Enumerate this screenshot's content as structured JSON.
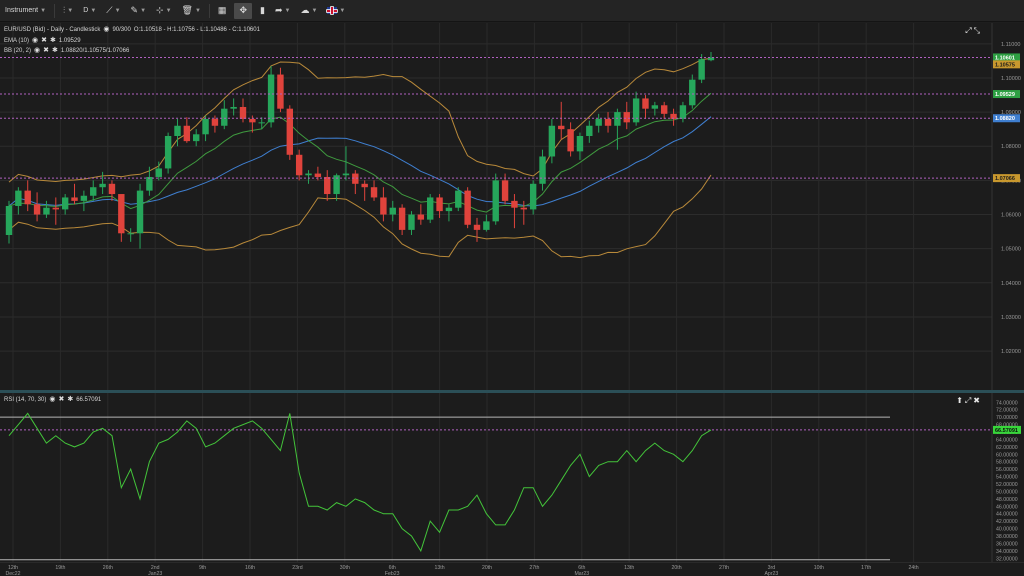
{
  "toolbar": {
    "instrument_label": "Instrument",
    "timeframe_label": "D",
    "flag_icon": "uk-flag-icon",
    "icons": [
      "chart-type-icon",
      "draw-line-icon",
      "pencil-icon",
      "shapes-icon",
      "trash-icon",
      "layout-icon",
      "crosshair-icon",
      "bar-chart-icon",
      "share-icon",
      "cloud-icon"
    ]
  },
  "main_legend": {
    "title": "EUR/USD (Bid) - Daily - Candlestick",
    "range": "90/300",
    "ohlc": "O:1.10518 - H:1.10756 - L:1.10486 - C:1.10601",
    "ema_label": "EMA (10)",
    "ema_value": "1.09529",
    "bb_label": "BB (20, 2)",
    "bb_value": "1.08820/1.10575/1.07066"
  },
  "rsi_legend": {
    "label": "RSI (14, 70, 30)",
    "value": "66.57091"
  },
  "colors": {
    "up": "#26a65b",
    "down": "#e0433c",
    "ema": "#3f9a3f",
    "bb": "#b8893a",
    "bb_mid": "#3f7fd0",
    "rsi": "#43c43a",
    "bg": "#1c1c1c",
    "level": "#b060c0"
  },
  "chart_data": [
    {
      "type": "candlestick",
      "title": "EUR/USD (Bid) - Daily - Candlestick",
      "ylim": [
        1.0086,
        1.1161
      ],
      "y_ticks": [
        "1.11000",
        "1.10000",
        "1.09000",
        "1.08000",
        "1.07000",
        "1.06000",
        "1.05000",
        "1.04000",
        "1.03000",
        "1.02000"
      ],
      "y_tick_values": [
        1.11,
        1.1,
        1.09,
        1.08,
        1.07,
        1.06,
        1.05,
        1.04,
        1.03,
        1.02
      ],
      "x_labels": [
        "12th Dec22",
        "19th",
        "26th",
        "2nd Jan23",
        "9th",
        "16th",
        "23rd",
        "30th",
        "6th Feb23",
        "13th",
        "20th",
        "27th",
        "6th Mar23",
        "13th",
        "20th",
        "27th",
        "3rd Apr23",
        "10th",
        "17th",
        "24th"
      ],
      "levels": [
        {
          "value": 1.10601,
          "label": "1.10601",
          "bg": "#2ea043",
          "color": "#ffffff"
        },
        {
          "value": 1.10575,
          "label": "1.10575",
          "bg": "#c8982e",
          "color": "#1a1a1a"
        },
        {
          "value": 1.09529,
          "label": "1.09529",
          "bg": "#2ea043",
          "color": "#ffffff"
        },
        {
          "value": 1.0882,
          "label": "1.08820",
          "bg": "#3f7fd0",
          "color": "#ffffff"
        },
        {
          "value": 1.07066,
          "label": "1.07066",
          "bg": "#c8982e",
          "color": "#1a1a1a"
        }
      ],
      "candles": [
        [
          1.054,
          1.064,
          1.0515,
          1.0625
        ],
        [
          1.0625,
          1.068,
          1.06,
          1.067
        ],
        [
          1.067,
          1.07,
          1.061,
          1.063
        ],
        [
          1.063,
          1.0665,
          1.058,
          1.06
        ],
        [
          1.06,
          1.064,
          1.059,
          1.062
        ],
        [
          1.062,
          1.065,
          1.057,
          1.0615
        ],
        [
          1.0615,
          1.066,
          1.06,
          1.065
        ],
        [
          1.065,
          1.069,
          1.063,
          1.064
        ],
        [
          1.064,
          1.067,
          1.061,
          1.0655
        ],
        [
          1.0655,
          1.07,
          1.064,
          1.068
        ],
        [
          1.068,
          1.0725,
          1.066,
          1.069
        ],
        [
          1.069,
          1.07,
          1.064,
          1.066
        ],
        [
          1.066,
          1.0655,
          1.052,
          1.0545
        ],
        [
          1.0545,
          1.056,
          1.052,
          1.0545
        ],
        [
          1.0545,
          1.069,
          1.05,
          1.067
        ],
        [
          1.067,
          1.074,
          1.0655,
          1.071
        ],
        [
          1.071,
          1.0755,
          1.07,
          1.0735
        ],
        [
          1.0735,
          1.084,
          1.072,
          1.083
        ],
        [
          1.083,
          1.088,
          1.08,
          1.086
        ],
        [
          1.086,
          1.0885,
          1.081,
          1.0815
        ],
        [
          1.0815,
          1.085,
          1.08,
          1.0835
        ],
        [
          1.0835,
          1.089,
          1.0815,
          1.088
        ],
        [
          1.088,
          1.089,
          1.084,
          1.086
        ],
        [
          1.086,
          1.0935,
          1.085,
          1.091
        ],
        [
          1.091,
          1.094,
          1.089,
          1.0915
        ],
        [
          1.0915,
          1.094,
          1.087,
          1.088
        ],
        [
          1.088,
          1.089,
          1.084,
          1.087
        ],
        [
          1.087,
          1.0885,
          1.085,
          1.087
        ],
        [
          1.087,
          1.1035,
          1.0855,
          1.101
        ],
        [
          1.101,
          1.103,
          1.09,
          1.091
        ],
        [
          1.091,
          1.092,
          1.076,
          1.0775
        ],
        [
          1.0775,
          1.079,
          1.07,
          1.0715
        ],
        [
          1.0715,
          1.073,
          1.069,
          1.072
        ],
        [
          1.072,
          1.074,
          1.07,
          1.071
        ],
        [
          1.071,
          1.073,
          1.064,
          1.066
        ],
        [
          1.066,
          1.072,
          1.064,
          1.0715
        ],
        [
          1.0715,
          1.08,
          1.07,
          1.072
        ],
        [
          1.072,
          1.073,
          1.066,
          1.069
        ],
        [
          1.069,
          1.07,
          1.064,
          1.068
        ],
        [
          1.068,
          1.07,
          1.064,
          1.065
        ],
        [
          1.065,
          1.068,
          1.058,
          1.06
        ],
        [
          1.06,
          1.064,
          1.058,
          1.062
        ],
        [
          1.062,
          1.063,
          1.054,
          1.0555
        ],
        [
          1.0555,
          1.061,
          1.054,
          1.06
        ],
        [
          1.06,
          1.063,
          1.057,
          1.0585
        ],
        [
          1.0585,
          1.066,
          1.0575,
          1.065
        ],
        [
          1.065,
          1.066,
          1.059,
          1.061
        ],
        [
          1.061,
          1.063,
          1.058,
          1.062
        ],
        [
          1.062,
          1.068,
          1.061,
          1.067
        ],
        [
          1.067,
          1.068,
          1.056,
          1.057
        ],
        [
          1.057,
          1.059,
          1.052,
          1.0555
        ],
        [
          1.0555,
          1.06,
          1.055,
          1.058
        ],
        [
          1.058,
          1.072,
          1.057,
          1.07
        ],
        [
          1.07,
          1.072,
          1.063,
          1.064
        ],
        [
          1.064,
          1.066,
          1.056,
          1.062
        ],
        [
          1.062,
          1.064,
          1.057,
          1.0615
        ],
        [
          1.0615,
          1.07,
          1.06,
          1.069
        ],
        [
          1.069,
          1.079,
          1.067,
          1.077
        ],
        [
          1.077,
          1.088,
          1.075,
          1.086
        ],
        [
          1.086,
          1.093,
          1.082,
          1.085
        ],
        [
          1.085,
          1.087,
          1.077,
          1.0785
        ],
        [
          1.0785,
          1.084,
          1.076,
          1.083
        ],
        [
          1.083,
          1.0875,
          1.081,
          1.086
        ],
        [
          1.086,
          1.0895,
          1.084,
          1.088
        ],
        [
          1.088,
          1.09,
          1.084,
          1.086
        ],
        [
          1.086,
          1.091,
          1.079,
          1.09
        ],
        [
          1.09,
          1.093,
          1.085,
          1.087
        ],
        [
          1.087,
          1.096,
          1.086,
          1.094
        ],
        [
          1.094,
          1.095,
          1.088,
          1.091
        ],
        [
          1.091,
          1.093,
          1.089,
          1.092
        ],
        [
          1.092,
          1.093,
          1.088,
          1.0895
        ],
        [
          1.0895,
          1.091,
          1.086,
          1.088
        ],
        [
          1.088,
          1.093,
          1.087,
          1.092
        ],
        [
          1.092,
          1.101,
          1.091,
          1.0995
        ],
        [
          1.0995,
          1.107,
          1.0985,
          1.1055
        ],
        [
          1.1052,
          1.1076,
          1.1049,
          1.106
        ]
      ]
    },
    {
      "type": "line",
      "title": "RSI (14, 70, 30)",
      "ylim": [
        31.0,
        76.5
      ],
      "y_ticks": [
        "74.00000",
        "72.00000",
        "70.00000",
        "68.00000",
        "66.00000",
        "64.00000",
        "62.00000",
        "60.00000",
        "58.00000",
        "56.00000",
        "54.00000",
        "52.00000",
        "50.00000",
        "48.00000",
        "46.00000",
        "44.00000",
        "42.00000",
        "40.00000",
        "38.00000",
        "36.00000",
        "34.00000",
        "32.00000"
      ],
      "y_tick_values": [
        74,
        72,
        70,
        68,
        66,
        64,
        62,
        60,
        58,
        56,
        54,
        52,
        50,
        48,
        46,
        44,
        42,
        40,
        38,
        36,
        34,
        32
      ],
      "upper_band": 70,
      "lower_band": 30,
      "last_value_label": "66.57091",
      "last_value": 66.57,
      "values": [
        65,
        68,
        71,
        67,
        63,
        65,
        63,
        62,
        63,
        66,
        67,
        65,
        51,
        56,
        48,
        58,
        63,
        64,
        66,
        69,
        67,
        62,
        63,
        65,
        67,
        68,
        69,
        67,
        64,
        61,
        71,
        55,
        46,
        46,
        45,
        47,
        46,
        48,
        47,
        45,
        44,
        44,
        40,
        38,
        34,
        42,
        39,
        45,
        45,
        46,
        49,
        44,
        41,
        41,
        45,
        51,
        51,
        46,
        49,
        53,
        57,
        60,
        54,
        57,
        58,
        58,
        61,
        58,
        61,
        63,
        61,
        60,
        58,
        61,
        65,
        66.57
      ]
    }
  ]
}
